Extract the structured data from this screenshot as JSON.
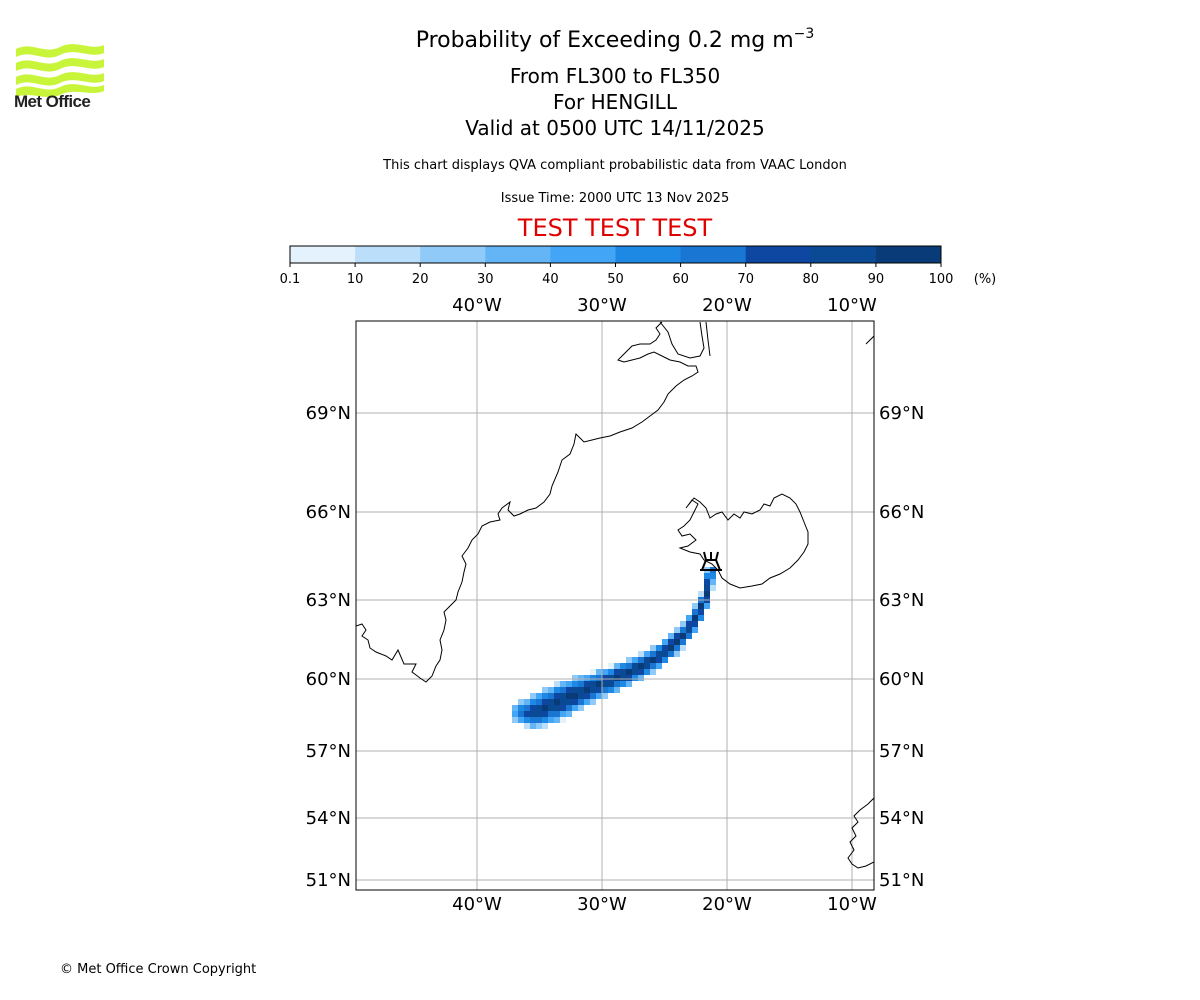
{
  "logo": {
    "name": "Met Office",
    "icon": "met-office-waves-logo",
    "color": "#c8f53a"
  },
  "title": {
    "main_prefix": "Probability of Exceeding 0.2 mg m",
    "main_superscript": "−3",
    "levels": "From FL300 to FL350",
    "volcano": "For HENGILL",
    "valid": "Valid at 0500 UTC 14/11/2025"
  },
  "subtitle": "This chart displays QVA compliant probabilistic data from VAAC London",
  "issue_time": "Issue Time: 2000 UTC 13 Nov 2025",
  "test_banner": {
    "text": "TEST TEST TEST",
    "color": "#e00000"
  },
  "copyright": "© Met Office Crown Copyright",
  "chart_data": {
    "type": "heatmap",
    "title": "Probability of Exceeding 0.2 mg m-3",
    "colorbar": {
      "ticks": [
        "0.1",
        "10",
        "20",
        "30",
        "40",
        "50",
        "60",
        "70",
        "80",
        "90",
        "100"
      ],
      "unit": "(%)",
      "colors": [
        "#e3f2fd",
        "#bbdefb",
        "#90caf9",
        "#64b5f6",
        "#42a5f5",
        "#1e88e5",
        "#1976d2",
        "#0d47a1",
        "#0a4a95",
        "#083b78"
      ]
    },
    "x_ticks": [
      "40°W",
      "30°W",
      "20°W",
      "10°W"
    ],
    "x_tick_values": [
      -40,
      -30,
      -20,
      -10
    ],
    "y_ticks": [
      "69°N",
      "66°N",
      "63°N",
      "60°N",
      "57°N",
      "54°N",
      "51°N"
    ],
    "y_tick_values": [
      69,
      66,
      63,
      60,
      57,
      54,
      51
    ],
    "lon_range": [
      -49.8,
      -8.6
    ],
    "lat_range": [
      50.7,
      71.8
    ],
    "grid": true,
    "volcano": {
      "name": "HENGILL",
      "lon": -21.3,
      "lat": 64.1,
      "icon": "volcano-symbol"
    },
    "plume_centerline": [
      {
        "lon": -21.3,
        "lat": 64.0,
        "prob": 95,
        "width": 0.3
      },
      {
        "lon": -21.6,
        "lat": 63.2,
        "prob": 95,
        "width": 0.4
      },
      {
        "lon": -22.3,
        "lat": 62.5,
        "prob": 95,
        "width": 0.5
      },
      {
        "lon": -23.2,
        "lat": 61.8,
        "prob": 95,
        "width": 0.6
      },
      {
        "lon": -24.5,
        "lat": 61.2,
        "prob": 95,
        "width": 0.7
      },
      {
        "lon": -26.0,
        "lat": 60.7,
        "prob": 95,
        "width": 0.8
      },
      {
        "lon": -28.0,
        "lat": 60.2,
        "prob": 95,
        "width": 0.9
      },
      {
        "lon": -30.0,
        "lat": 59.8,
        "prob": 95,
        "width": 1.0
      },
      {
        "lon": -32.0,
        "lat": 59.4,
        "prob": 95,
        "width": 1.2
      },
      {
        "lon": -34.0,
        "lat": 58.9,
        "prob": 95,
        "width": 1.3
      },
      {
        "lon": -35.5,
        "lat": 58.6,
        "prob": 90,
        "width": 1.2
      },
      {
        "lon": -36.4,
        "lat": 58.6,
        "prob": 70,
        "width": 0.9
      }
    ],
    "coastlines": [
      "Greenland",
      "Iceland",
      "Ireland"
    ]
  }
}
